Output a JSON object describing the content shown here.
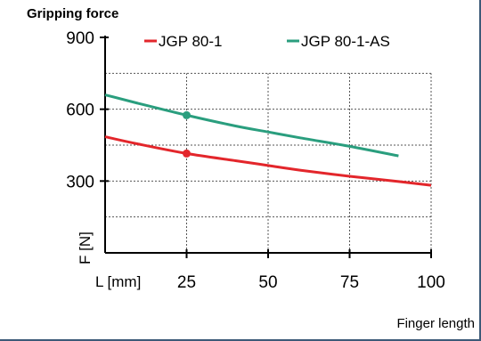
{
  "chart_data": {
    "type": "line",
    "title": "Gripping force",
    "xlabel": "L [mm]",
    "ylabel": "F [N]",
    "x_title": "Finger length",
    "xlim": [
      0,
      100
    ],
    "ylim": [
      0,
      900
    ],
    "x_ticks": [
      25,
      50,
      75,
      100
    ],
    "y_ticks": [
      300,
      600,
      900
    ],
    "grid": true,
    "legend_position": "top",
    "series": [
      {
        "name": "JGP 80-1",
        "color": "#e3262b",
        "x": [
          0,
          10,
          25,
          40,
          50,
          60,
          75,
          90,
          100
        ],
        "y": [
          485,
          455,
          415,
          385,
          365,
          345,
          320,
          298,
          282
        ],
        "marker_x": 25,
        "marker_y": 415
      },
      {
        "name": "JGP 80-1-AS",
        "color": "#2a9e7e",
        "x": [
          0,
          10,
          25,
          40,
          50,
          60,
          75,
          90
        ],
        "y": [
          660,
          625,
          575,
          530,
          505,
          480,
          445,
          405
        ],
        "marker_x": 25,
        "marker_y": 575
      }
    ]
  }
}
